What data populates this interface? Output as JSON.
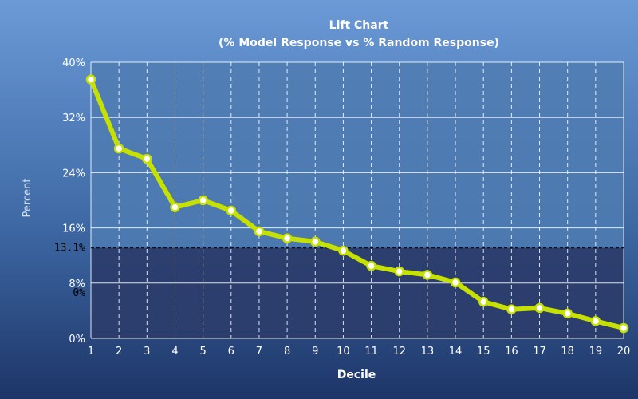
{
  "chart_data": {
    "type": "line",
    "title": "Lift Chart",
    "subtitle": "(% Model Response vs % Random Response)",
    "xlabel": "Decile",
    "ylabel": "Percent",
    "x": [
      1,
      2,
      3,
      4,
      5,
      6,
      7,
      8,
      9,
      10,
      11,
      12,
      13,
      14,
      15,
      16,
      17,
      18,
      19,
      20
    ],
    "series": [
      {
        "values": [
          37.5,
          27.5,
          26,
          19,
          20,
          18.5,
          15.5,
          14.5,
          14,
          12.7,
          10.5,
          9.7,
          9.2,
          8.1,
          5.3,
          4.2,
          4.4,
          3.6,
          2.5,
          1.5
        ]
      }
    ],
    "ylim": [
      0,
      40
    ],
    "yticks": [
      0,
      8,
      16,
      24,
      32,
      40
    ],
    "ytick_labels": [
      "0%",
      "8%",
      "16%",
      "24%",
      "32%",
      "40%"
    ],
    "reference_line": {
      "value": 13.1,
      "label": "13.1%",
      "baseline_label": "0%"
    },
    "grid": true,
    "colors": {
      "line": "#c6e000",
      "marker_fill": "#ffffff",
      "upper_band": "#4f7cb2",
      "lower_band": "#2b3d6d"
    }
  }
}
